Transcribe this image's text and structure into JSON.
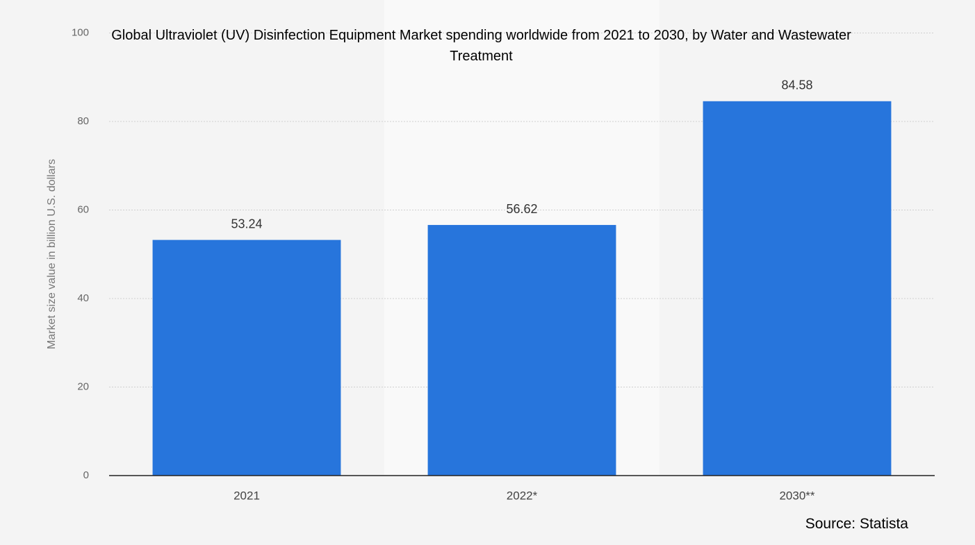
{
  "chart_data": {
    "type": "bar",
    "title": "Global Ultraviolet (UV) Disinfection Equipment Market spending worldwide from 2021 to 2030, by Water and Wastewater Treatment",
    "y_label": "Market size value in billion U.S. dollars",
    "source": "Source: Statista",
    "categories": [
      "2021",
      "2022*",
      "2030**"
    ],
    "values": [
      53.24,
      56.62,
      84.58
    ],
    "color": "#2775dc",
    "ylim": [
      0,
      100
    ],
    "yticks": [
      0,
      20,
      40,
      60,
      80,
      100
    ],
    "grid": true
  }
}
